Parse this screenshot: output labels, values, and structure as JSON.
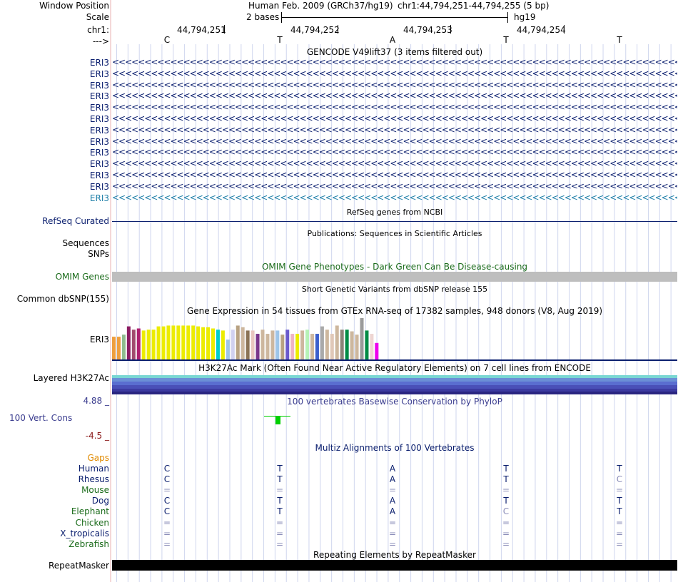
{
  "header": {
    "window_position_label": "Window Position",
    "scale_label": "Scale",
    "chrom_label": "chr1:",
    "strand_label": "--->",
    "assembly": "Human Feb. 2009 (GRCh37/hg19)",
    "position": "chr1:44,794,251-44,794,255 (5 bp)",
    "scale_text": "2 bases",
    "db": "hg19",
    "coords": [
      "44,794,251",
      "44,794,252",
      "44,794,253",
      "44,794,254"
    ],
    "bases": [
      "C",
      "T",
      "A",
      "T",
      "T"
    ]
  },
  "gencode": {
    "title": "GENCODE V49lift37 (3 items filtered out)",
    "genes": [
      "ERI3",
      "ERI3",
      "ERI3",
      "ERI3",
      "ERI3",
      "ERI3",
      "ERI3",
      "ERI3",
      "ERI3",
      "ERI3",
      "ERI3",
      "ERI3",
      "ERI3"
    ],
    "gene_color": "#0a1e6e",
    "last_gene_color": "#1f7fa8",
    "arrow_text": "<<<<<<<<<<<<<<<<<<<<<<<<<<<<<<<<<<<<<<<<<<<<<<<<<<<<<<<<<<<<<<<<<<<<<<<<<<<<<<<<<<<<<<<<<<<<<<<<<<<<<<<<<<<<<<<<<<<<<<<<<<<<<<<<<<<<<<<<<<<<"
  },
  "refseq": {
    "title": "RefSeq genes from NCBI",
    "label": "RefSeq Curated"
  },
  "publications": {
    "title": "Publications: Sequences in Scientific Articles",
    "label1": "Sequences",
    "label2": "SNPs"
  },
  "omim": {
    "title": "OMIM Gene Phenotypes - Dark Green Can Be Disease-causing",
    "label": "OMIM Genes"
  },
  "dbsnp": {
    "title": "Short Genetic Variants from dbSNP release 155",
    "label": "Common dbSNP(155)"
  },
  "gtex": {
    "title": "Gene Expression in 54 tissues from GTEx RNA-seq of 17382 samples, 948 donors (V8, Aug 2019)",
    "label": "ERI3",
    "tissue_levels": [
      0.55,
      0.55,
      0.6,
      0.8,
      0.72,
      0.75,
      0.7,
      0.72,
      0.72,
      0.8,
      0.8,
      0.82,
      0.82,
      0.82,
      0.82,
      0.82,
      0.82,
      0.8,
      0.78,
      0.78,
      0.75,
      0.72,
      0.7,
      0.48,
      0.72,
      0.82,
      0.78,
      0.7,
      0.7,
      0.62,
      0.72,
      0.62,
      0.7,
      0.7,
      0.6,
      0.72,
      0.62,
      0.62,
      0.7,
      0.72,
      0.62,
      0.62,
      0.8,
      0.72,
      0.62,
      0.82,
      0.72,
      0.72,
      0.68,
      0.6,
      1.0,
      0.7,
      0.62,
      0.4
    ],
    "tissue_colors": [
      "#ee9e3e",
      "#ee9e3e",
      "#8fbc8f",
      "#8b1c62",
      "#a14a6e",
      "#ad1f6f",
      "#ecec00",
      "#ecec00",
      "#ecec00",
      "#ecec00",
      "#ecec00",
      "#ecec00",
      "#ecec00",
      "#ecec00",
      "#ecec00",
      "#ecec00",
      "#ecec00",
      "#ecec00",
      "#ecec00",
      "#ecec00",
      "#ecec00",
      "#00cdcd",
      "#ecec00",
      "#9ec5e8",
      "#d1d1f0",
      "#b8a282",
      "#cdb79e",
      "#8b7355",
      "#e9c7c0",
      "#7a378b",
      "#cdb79e",
      "#cdb79e",
      "#cdb79e",
      "#9ec5e8",
      "#b8a282",
      "#6a5acd",
      "#eeb4c6",
      "#ecec00",
      "#cdb79e",
      "#b6f2b6",
      "#cdb79e",
      "#3a5fcd",
      "#a9a9a9",
      "#cdb79e",
      "#e0c8b8",
      "#cdb79e",
      "#8b8378",
      "#008b45",
      "#cdb79e",
      "#cdb79e",
      "#9b9b9b",
      "#008b45",
      "#eed5d2",
      "#ee00ee"
    ]
  },
  "h3k27ac": {
    "title": "H3K27Ac Mark (Often Found Near Active Regulatory Elements) on 7 cell lines from ENCODE",
    "label": "Layered H3K27Ac"
  },
  "phylop": {
    "title": "100 vertebrates Basewise Conservation by PhyloP",
    "label": "100 Vert. Cons",
    "max": "4.88 _",
    "min": "-4.5 _"
  },
  "multiz": {
    "title": "Multiz Alignments of 100 Vertebrates",
    "gaps_label": "Gaps",
    "species": [
      {
        "name": "Human",
        "color": "#0a1e6e",
        "bases": [
          "C",
          "T",
          "A",
          "T",
          "T"
        ],
        "dim": [
          false,
          false,
          false,
          false,
          false
        ]
      },
      {
        "name": "Rhesus",
        "color": "#0a1e6e",
        "bases": [
          "C",
          "T",
          "A",
          "T",
          "C"
        ],
        "dim": [
          false,
          false,
          false,
          false,
          true
        ]
      },
      {
        "name": "Mouse",
        "color": "#1a6b1a",
        "bases": [
          "=",
          "=",
          "=",
          "=",
          "="
        ],
        "dim": [
          true,
          true,
          true,
          true,
          true
        ]
      },
      {
        "name": "Dog",
        "color": "#0a1e6e",
        "bases": [
          "C",
          "T",
          "A",
          "T",
          "T"
        ],
        "dim": [
          false,
          false,
          false,
          false,
          false
        ]
      },
      {
        "name": "Elephant",
        "color": "#1a6b1a",
        "bases": [
          "C",
          "T",
          "A",
          "C",
          "T"
        ],
        "dim": [
          false,
          false,
          false,
          true,
          false
        ]
      },
      {
        "name": "Chicken",
        "color": "#1a6b1a",
        "bases": [
          "=",
          "=",
          "=",
          "=",
          "="
        ],
        "dim": [
          true,
          true,
          true,
          true,
          true
        ]
      },
      {
        "name": "X_tropicalis",
        "color": "#0a1e6e",
        "bases": [
          "=",
          "=",
          "=",
          "=",
          "="
        ],
        "dim": [
          true,
          true,
          true,
          true,
          true
        ]
      },
      {
        "name": "Zebrafish",
        "color": "#1a6b1a",
        "bases": [
          "=",
          "=",
          "=",
          "=",
          "="
        ],
        "dim": [
          true,
          true,
          true,
          true,
          true
        ]
      }
    ]
  },
  "repeatmasker": {
    "title": "Repeating Elements by RepeatMasker",
    "label": "RepeatMasker"
  },
  "colors": {
    "grid": "#cfd6ee",
    "omim_bar": "#bebebe",
    "track_navy": "#0a1e6e",
    "phylop_label": "#3b3d8f",
    "phylop_min": "#8b1a1a",
    "gaps": "#e08a00",
    "omim_label": "#1a6b1a",
    "conservation_bar": "#00d000"
  }
}
